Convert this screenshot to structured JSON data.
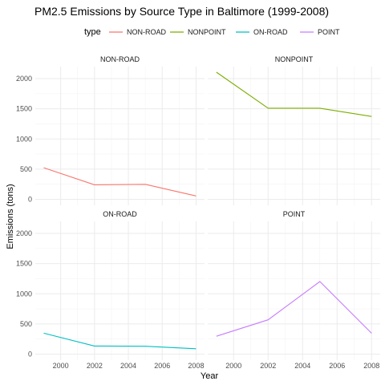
{
  "chart_data": {
    "type": "line",
    "title": "PM2.5 Emissions by Source Type in Baltimore (1999-2008)",
    "xlabel": "Year",
    "ylabel": "Emissions (tons)",
    "x": [
      1999,
      2002,
      2005,
      2008
    ],
    "xlim": [
      1998.5,
      2008.5
    ],
    "ylim": [
      -100,
      2200
    ],
    "x_ticks": [
      2000,
      2002,
      2004,
      2006,
      2008
    ],
    "y_ticks": [
      0,
      500,
      1000,
      1500,
      2000
    ],
    "grid": true,
    "facet": "2x2",
    "legend": {
      "title": "type",
      "position": "top"
    },
    "series": [
      {
        "name": "NON-ROAD",
        "color": "#F8766D",
        "values": [
          522.9,
          240.8,
          248.9,
          55.8
        ]
      },
      {
        "name": "NONPOINT",
        "color": "#7CAE00",
        "values": [
          2107.6,
          1509.5,
          1509.5,
          1373.2
        ]
      },
      {
        "name": "ON-ROAD",
        "color": "#00BFC4",
        "values": [
          346.8,
          134.3,
          130.4,
          88.3
        ]
      },
      {
        "name": "POINT",
        "color": "#C77CFF",
        "values": [
          296.8,
          569.3,
          1202.5,
          345.0
        ]
      }
    ]
  }
}
